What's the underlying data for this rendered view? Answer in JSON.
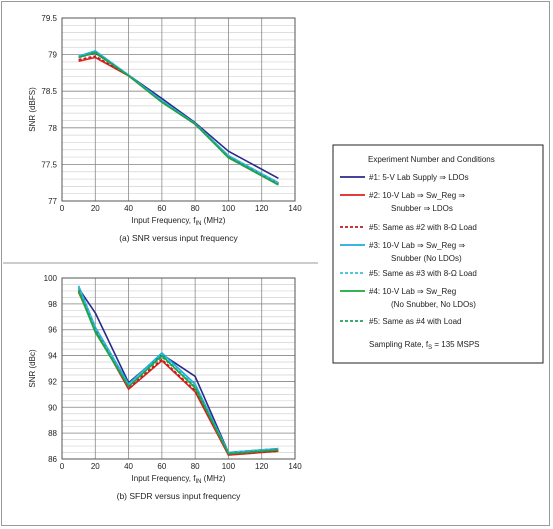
{
  "chart_data": [
    {
      "type": "line",
      "title": "(a) SNR versus input frequency",
      "xlabel": "Input Frequency, f",
      "xlabel_sub": "IN",
      "xlabel_unit": " (MHz)",
      "ylabel": "SNR (dBFS)",
      "xlim": [
        0,
        140
      ],
      "ylim": [
        77,
        79.5
      ],
      "xticks": [
        0,
        20,
        40,
        60,
        80,
        100,
        120,
        140
      ],
      "yticks": [
        77,
        77.5,
        78,
        78.5,
        79,
        79.5
      ],
      "ytick_labels": [
        "77",
        "77.5",
        "78",
        "78.5",
        "79",
        "79.5"
      ],
      "minor_y_step": 0.1,
      "grid": true,
      "x": [
        10,
        20,
        40,
        60,
        80,
        100,
        130
      ],
      "series": [
        {
          "color": "#2a2a8c",
          "dash": false,
          "values": [
            78.97,
            79.02,
            78.72,
            78.4,
            78.07,
            77.68,
            77.31
          ]
        },
        {
          "color": "#e02020",
          "dash": false,
          "values": [
            78.91,
            78.96,
            78.71,
            78.35,
            78.05,
            77.6,
            77.23
          ]
        },
        {
          "color": "#c21818",
          "dash": true,
          "values": [
            78.93,
            78.98,
            78.71,
            78.36,
            78.05,
            77.61,
            77.24
          ]
        },
        {
          "color": "#1ea8e6",
          "dash": false,
          "values": [
            78.98,
            79.05,
            78.72,
            78.37,
            78.06,
            77.62,
            77.25
          ]
        },
        {
          "color": "#35c0d8",
          "dash": true,
          "values": [
            78.97,
            79.04,
            78.72,
            78.36,
            78.06,
            77.62,
            77.24
          ]
        },
        {
          "color": "#1aa83a",
          "dash": false,
          "values": [
            78.96,
            79.03,
            78.71,
            78.35,
            78.05,
            77.59,
            77.22
          ]
        },
        {
          "color": "#22a055",
          "dash": true,
          "values": [
            78.96,
            79.02,
            78.71,
            78.35,
            78.05,
            77.6,
            77.22
          ]
        }
      ]
    },
    {
      "type": "line",
      "title": "(b) SFDR versus input frequency",
      "xlabel": "Input Frequency, f",
      "xlabel_sub": "IN",
      "xlabel_unit": " (MHz)",
      "ylabel": "SNR (dBc)",
      "xlim": [
        0,
        140
      ],
      "ylim": [
        86,
        100
      ],
      "xticks": [
        0,
        20,
        40,
        60,
        80,
        100,
        120,
        140
      ],
      "yticks": [
        86,
        88,
        90,
        92,
        94,
        96,
        98,
        100
      ],
      "ytick_labels": [
        "86",
        "88",
        "90",
        "92",
        "94",
        "96",
        "98",
        "100"
      ],
      "minor_y_step": 0.5,
      "grid": true,
      "x": [
        10,
        20,
        40,
        60,
        80,
        100,
        130
      ],
      "series": [
        {
          "color": "#2a2a8c",
          "dash": false,
          "values": [
            99.2,
            97.3,
            91.9,
            94.1,
            92.4,
            86.5,
            86.8
          ]
        },
        {
          "color": "#e02020",
          "dash": false,
          "values": [
            98.9,
            96.0,
            91.4,
            93.6,
            91.2,
            86.3,
            86.6
          ]
        },
        {
          "color": "#c21818",
          "dash": true,
          "values": [
            99.0,
            96.1,
            91.5,
            93.7,
            91.3,
            86.4,
            86.6
          ]
        },
        {
          "color": "#1ea8e6",
          "dash": false,
          "values": [
            99.4,
            96.2,
            91.8,
            94.2,
            91.8,
            86.5,
            86.8
          ]
        },
        {
          "color": "#35c0d8",
          "dash": true,
          "values": [
            99.3,
            96.1,
            91.7,
            94.1,
            91.7,
            86.5,
            86.8
          ]
        },
        {
          "color": "#1aa83a",
          "dash": false,
          "values": [
            99.0,
            95.8,
            91.6,
            94.0,
            91.5,
            86.4,
            86.7
          ]
        },
        {
          "color": "#22a055",
          "dash": true,
          "values": [
            99.1,
            95.9,
            91.6,
            93.9,
            91.6,
            86.4,
            86.7
          ]
        }
      ]
    }
  ],
  "legend": {
    "heading": "Experiment Number and Conditions",
    "entries": [
      {
        "color": "#2a2a8c",
        "dash": false,
        "lines": [
          "#1: 5-V Lab Supply ⇒ LDOs"
        ]
      },
      {
        "color": "#e02020",
        "dash": false,
        "lines": [
          "#2: 10-V Lab ⇒ Sw_Reg ⇒",
          "Snubber ⇒ LDOs"
        ]
      },
      {
        "color": "#c21818",
        "dash": true,
        "lines": [
          "#5: Same as #2 with 8-Ω Load"
        ]
      },
      {
        "color": "#1ea8e6",
        "dash": false,
        "lines": [
          "#3: 10-V Lab ⇒ Sw_Reg ⇒",
          "Snubber (No LDOs)"
        ]
      },
      {
        "color": "#35c0d8",
        "dash": true,
        "lines": [
          "#5: Same as #3 with 8-Ω Load"
        ]
      },
      {
        "color": "#1aa83a",
        "dash": false,
        "lines": [
          "#4: 10-V Lab ⇒ Sw_Reg",
          "(No Snubber, No LDOs)"
        ]
      },
      {
        "color": "#22a055",
        "dash": true,
        "lines": [
          "#5: Same as #4 with Load"
        ]
      }
    ],
    "footer": "Sampling Rate, f",
    "footer_sub": "S",
    "footer_value": " = 135 MSPS"
  }
}
